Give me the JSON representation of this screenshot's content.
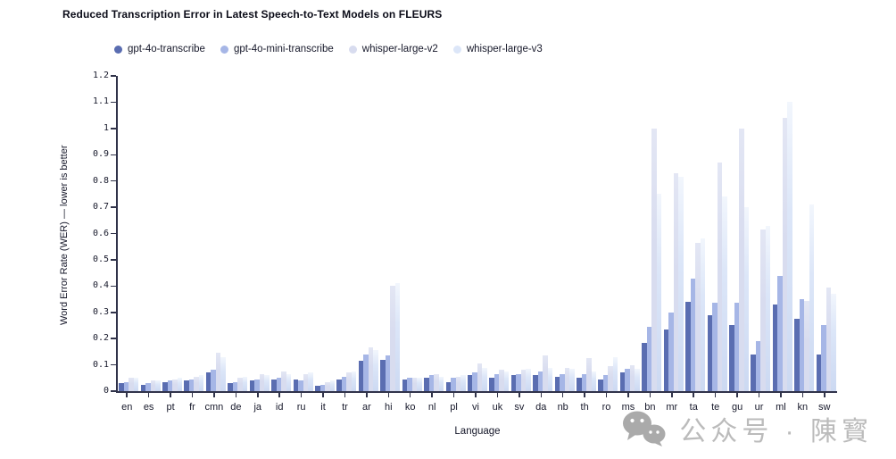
{
  "title": "Reduced Transcription Error in Latest Speech-to-Text Models on FLEURS",
  "watermark": {
    "icon": "wechat-icon",
    "text": "公众号 · 陳寳"
  },
  "chart_data": {
    "type": "bar",
    "title": "Reduced Transcription Error in Latest Speech-to-Text Models on FLEURS",
    "xlabel": "Language",
    "ylabel": "Word Error Rate (WER) — lower is better",
    "ylim": [
      0,
      1.2
    ],
    "ytick_step": 0.1,
    "grid": false,
    "legend_position": "top-left",
    "categories": [
      "en",
      "es",
      "pt",
      "fr",
      "cmn",
      "de",
      "ja",
      "id",
      "ru",
      "it",
      "tr",
      "ar",
      "hi",
      "ko",
      "nl",
      "pl",
      "vi",
      "uk",
      "sv",
      "da",
      "nb",
      "th",
      "ro",
      "ms",
      "bn",
      "mr",
      "ta",
      "te",
      "gu",
      "ur",
      "ml",
      "kn",
      "sw"
    ],
    "series": [
      {
        "name": "gpt-4o-transcribe",
        "color": "#5a6db1",
        "values": [
          0.03,
          0.025,
          0.035,
          0.04,
          0.07,
          0.03,
          0.04,
          0.045,
          0.045,
          0.02,
          0.045,
          0.115,
          0.12,
          0.045,
          0.05,
          0.035,
          0.06,
          0.05,
          0.06,
          0.06,
          0.055,
          0.05,
          0.045,
          0.07,
          0.185,
          0.235,
          0.34,
          0.29,
          0.25,
          0.14,
          0.33,
          0.275,
          0.14
        ]
      },
      {
        "name": "gpt-4o-mini-transcribe",
        "color": "#a6b6e6",
        "values": [
          0.035,
          0.03,
          0.04,
          0.045,
          0.08,
          0.035,
          0.045,
          0.05,
          0.04,
          0.025,
          0.055,
          0.14,
          0.135,
          0.05,
          0.06,
          0.05,
          0.07,
          0.065,
          0.065,
          0.075,
          0.065,
          0.065,
          0.06,
          0.085,
          0.245,
          0.3,
          0.43,
          0.335,
          0.335,
          0.19,
          0.44,
          0.35,
          0.25
        ]
      },
      {
        "name": "whisper-large-v2",
        "color": "#d8dcef",
        "values": [
          0.05,
          0.04,
          0.045,
          0.055,
          0.145,
          0.05,
          0.065,
          0.075,
          0.065,
          0.035,
          0.07,
          0.165,
          0.4,
          0.05,
          0.065,
          0.055,
          0.105,
          0.08,
          0.08,
          0.135,
          0.09,
          0.125,
          0.095,
          0.1,
          1.0,
          0.83,
          0.565,
          0.87,
          1.0,
          0.615,
          1.04,
          0.345,
          0.395
        ]
      },
      {
        "name": "whisper-large-v3",
        "color": "#dce6f8",
        "values": [
          0.05,
          0.04,
          0.05,
          0.06,
          0.13,
          0.055,
          0.06,
          0.065,
          0.07,
          0.04,
          0.075,
          0.155,
          0.41,
          0.05,
          0.055,
          0.06,
          0.09,
          0.075,
          0.085,
          0.09,
          0.085,
          0.075,
          0.13,
          0.085,
          0.75,
          0.815,
          0.58,
          0.74,
          0.7,
          0.63,
          1.1,
          0.71,
          0.37
        ]
      }
    ]
  }
}
